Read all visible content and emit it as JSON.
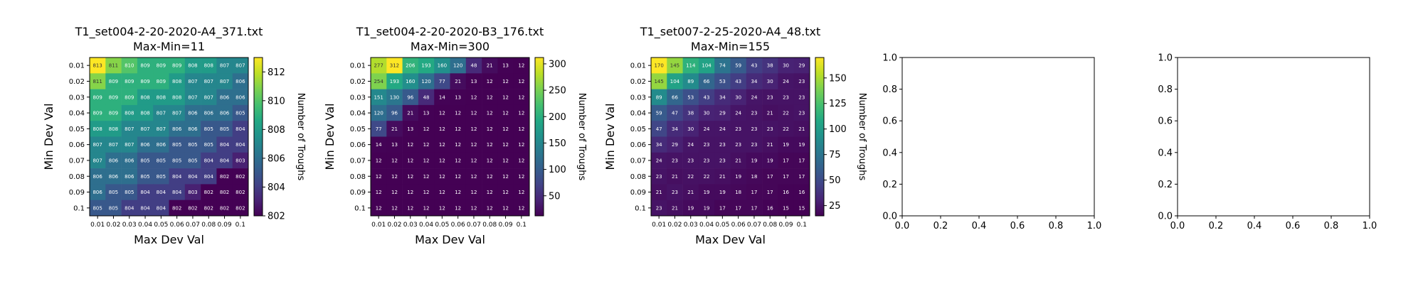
{
  "chart_data": [
    {
      "type": "heatmap",
      "title": "T1_set004-2-20-2020-A4_371.txt",
      "subtitle": "Max-Min=11",
      "xlabel": "Max Dev Val",
      "ylabel": "Min Dev Val",
      "x_ticks": [
        "0.01",
        "0.02",
        "0.03",
        "0.04",
        "0.05",
        "0.06",
        "0.07",
        "0.08",
        "0.09",
        "0.1"
      ],
      "y_ticks": [
        "0.01",
        "0.02",
        "0.03",
        "0.04",
        "0.05",
        "0.06",
        "0.07",
        "0.08",
        "0.09",
        "0.1"
      ],
      "colorbar_label": "Number of Troughs",
      "colorbar_range": [
        802,
        813
      ],
      "colorbar_ticks": [
        "802",
        "804",
        "806",
        "808",
        "810",
        "812"
      ],
      "values": [
        [
          813,
          811,
          810,
          809,
          809,
          809,
          808,
          808,
          807,
          807
        ],
        [
          811,
          809,
          809,
          809,
          809,
          808,
          807,
          807,
          807,
          806
        ],
        [
          809,
          809,
          809,
          808,
          808,
          808,
          807,
          807,
          806,
          806
        ],
        [
          809,
          809,
          808,
          808,
          807,
          807,
          806,
          806,
          806,
          805
        ],
        [
          808,
          808,
          807,
          807,
          807,
          806,
          806,
          805,
          805,
          804
        ],
        [
          807,
          807,
          807,
          806,
          806,
          805,
          805,
          805,
          804,
          804
        ],
        [
          807,
          806,
          806,
          805,
          805,
          805,
          805,
          804,
          804,
          803
        ],
        [
          806,
          806,
          806,
          805,
          805,
          804,
          804,
          804,
          802,
          802
        ],
        [
          806,
          805,
          805,
          804,
          804,
          804,
          803,
          802,
          802,
          802
        ],
        [
          805,
          805,
          804,
          804,
          804,
          802,
          802,
          802,
          802,
          802
        ]
      ]
    },
    {
      "type": "heatmap",
      "title": "T1_set004-2-20-2020-B3_176.txt",
      "subtitle": "Max-Min=300",
      "xlabel": "Max Dev Val",
      "ylabel": "Min Dev Val",
      "x_ticks": [
        "0.01",
        "0.02",
        "0.03",
        "0.04",
        "0.05",
        "0.06",
        "0.07",
        "0.08",
        "0.09",
        "0.1"
      ],
      "y_ticks": [
        "0.01",
        "0.02",
        "0.03",
        "0.04",
        "0.05",
        "0.06",
        "0.07",
        "0.08",
        "0.09",
        "0.1"
      ],
      "colorbar_label": "Number of Troughs",
      "colorbar_range": [
        12,
        312
      ],
      "colorbar_ticks": [
        "50",
        "100",
        "150",
        "200",
        "250",
        "300"
      ],
      "values": [
        [
          277,
          312,
          206,
          193,
          160,
          120,
          48,
          21,
          13,
          12
        ],
        [
          254,
          193,
          160,
          120,
          77,
          21,
          13,
          12,
          12,
          12
        ],
        [
          151,
          130,
          96,
          48,
          14,
          13,
          12,
          12,
          12,
          12
        ],
        [
          120,
          96,
          21,
          13,
          12,
          12,
          12,
          12,
          12,
          12
        ],
        [
          77,
          21,
          13,
          12,
          12,
          12,
          12,
          12,
          12,
          12
        ],
        [
          14,
          13,
          12,
          12,
          12,
          12,
          12,
          12,
          12,
          12
        ],
        [
          12,
          12,
          12,
          12,
          12,
          12,
          12,
          12,
          12,
          12
        ],
        [
          12,
          12,
          12,
          12,
          12,
          12,
          12,
          12,
          12,
          12
        ],
        [
          12,
          12,
          12,
          12,
          12,
          12,
          12,
          12,
          12,
          12
        ],
        [
          12,
          12,
          12,
          12,
          12,
          12,
          12,
          12,
          12,
          12
        ]
      ]
    },
    {
      "type": "heatmap",
      "title": "T1_set007-2-25-2020-A4_48.txt",
      "subtitle": "Max-Min=155",
      "xlabel": "Max Dev Val",
      "ylabel": "Min Dev Val",
      "x_ticks": [
        "0.01",
        "0.02",
        "0.03",
        "0.04",
        "0.05",
        "0.06",
        "0.07",
        "0.08",
        "0.09",
        "0.1"
      ],
      "y_ticks": [
        "0.01",
        "0.02",
        "0.03",
        "0.04",
        "0.05",
        "0.06",
        "0.07",
        "0.08",
        "0.09",
        "0.1"
      ],
      "colorbar_label": "Number of Troughs",
      "colorbar_range": [
        15,
        170
      ],
      "colorbar_ticks": [
        "25",
        "50",
        "75",
        "100",
        "125",
        "150"
      ],
      "values": [
        [
          170,
          145,
          114,
          104,
          74,
          59,
          43,
          38,
          30,
          29
        ],
        [
          145,
          104,
          89,
          66,
          53,
          43,
          34,
          30,
          24,
          23
        ],
        [
          89,
          66,
          53,
          43,
          34,
          30,
          24,
          23,
          23,
          23
        ],
        [
          59,
          47,
          38,
          30,
          29,
          24,
          23,
          21,
          22,
          23
        ],
        [
          47,
          34,
          30,
          24,
          24,
          23,
          23,
          23,
          22,
          21
        ],
        [
          34,
          29,
          24,
          23,
          23,
          23,
          23,
          21,
          19,
          19
        ],
        [
          24,
          23,
          23,
          23,
          23,
          21,
          19,
          19,
          17,
          17
        ],
        [
          23,
          21,
          22,
          22,
          21,
          19,
          18,
          17,
          17,
          17
        ],
        [
          21,
          23,
          21,
          19,
          19,
          18,
          17,
          17,
          16,
          16
        ],
        [
          23,
          21,
          19,
          19,
          17,
          17,
          17,
          16,
          15,
          15
        ]
      ]
    },
    {
      "type": "empty",
      "x_ticks": [
        "0.0",
        "0.2",
        "0.4",
        "0.6",
        "0.8",
        "1.0"
      ],
      "y_ticks": [
        "0.0",
        "0.2",
        "0.4",
        "0.6",
        "0.8",
        "1.0"
      ]
    },
    {
      "type": "empty",
      "x_ticks": [
        "0.0",
        "0.2",
        "0.4",
        "0.6",
        "0.8",
        "1.0"
      ],
      "y_ticks": [
        "0.0",
        "0.2",
        "0.4",
        "0.6",
        "0.8",
        "1.0"
      ]
    }
  ]
}
